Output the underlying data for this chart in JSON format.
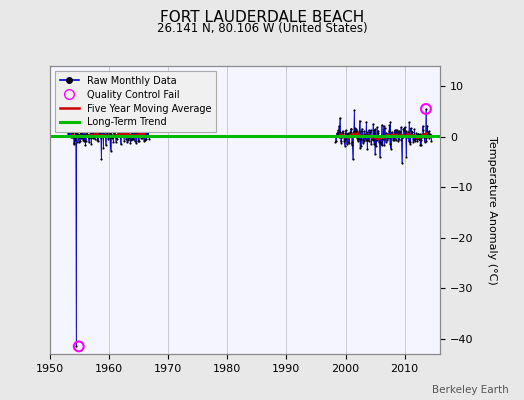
{
  "title": "FORT LAUDERDALE BEACH",
  "subtitle": "26.141 N, 80.106 W (United States)",
  "ylabel": "Temperature Anomaly (°C)",
  "credit": "Berkeley Earth",
  "xlim": [
    1950,
    2016
  ],
  "ylim": [
    -43,
    14
  ],
  "yticks": [
    -40,
    -30,
    -20,
    -10,
    0,
    10
  ],
  "xticks": [
    1950,
    1960,
    1970,
    1980,
    1990,
    2000,
    2010
  ],
  "fig_bg_color": "#e8e8e8",
  "plot_bg_color": "#f5f5ff",
  "grid_color": "#c8c8d8",
  "raw_line_color": "#0000cc",
  "raw_dot_color": "#000000",
  "ma_color": "#cc0000",
  "trend_color": "#00bb00",
  "qc_fail_color": "#ff00ff",
  "early_start": 1953.0,
  "early_end": 1966.8,
  "late_start": 1998.3,
  "late_end": 2014.5,
  "spike_year": 1954.5,
  "spike_value": -41.5,
  "spike2_year": 1958.7,
  "spike2_value": -4.5,
  "qc_fail_early_x": 1954.9,
  "qc_fail_early_y": -41.5,
  "qc_fail_late_x": 2013.6,
  "qc_fail_late_y": 5.5,
  "trend_y": 0.05
}
